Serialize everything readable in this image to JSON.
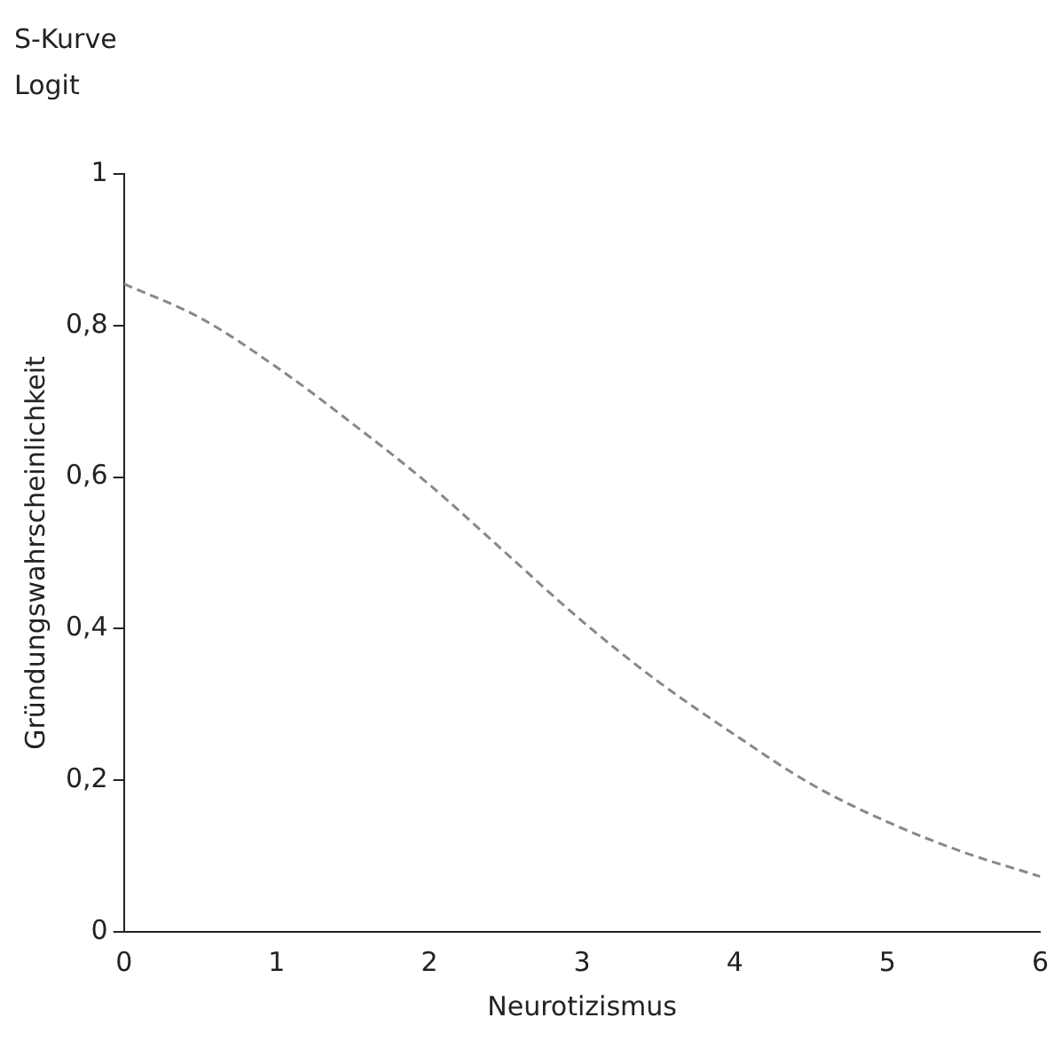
{
  "chart_data": {
    "type": "line",
    "title": "S-Kurve",
    "subtitle": "Logit",
    "xlabel": "Neurotizismus",
    "ylabel": "Gründungswahrscheinlichkeit",
    "x": [
      0,
      0.5,
      1,
      1.5,
      2,
      2.5,
      3,
      3.5,
      4,
      4.5,
      5,
      5.5,
      6
    ],
    "series": [
      {
        "color": "#888888",
        "values": [
          0.855,
          0.81,
          0.745,
          0.67,
          0.59,
          0.5,
          0.41,
          0.33,
          0.26,
          0.195,
          0.145,
          0.105,
          0.073
        ]
      }
    ],
    "xlim": [
      0,
      6
    ],
    "xticks": [
      0,
      1,
      2,
      3,
      4,
      5,
      6
    ],
    "ylim": [
      0,
      1
    ],
    "yticks": [
      0,
      {
        "value": 0.2,
        "label": "0,2"
      },
      {
        "value": 0.4,
        "label": "0,4"
      },
      {
        "value": 0.6,
        "label": "0,6"
      },
      {
        "value": 0.8,
        "label": "0,8"
      },
      1
    ],
    "grid": false,
    "legend": false,
    "marker": "none",
    "line_style": "dashed"
  }
}
